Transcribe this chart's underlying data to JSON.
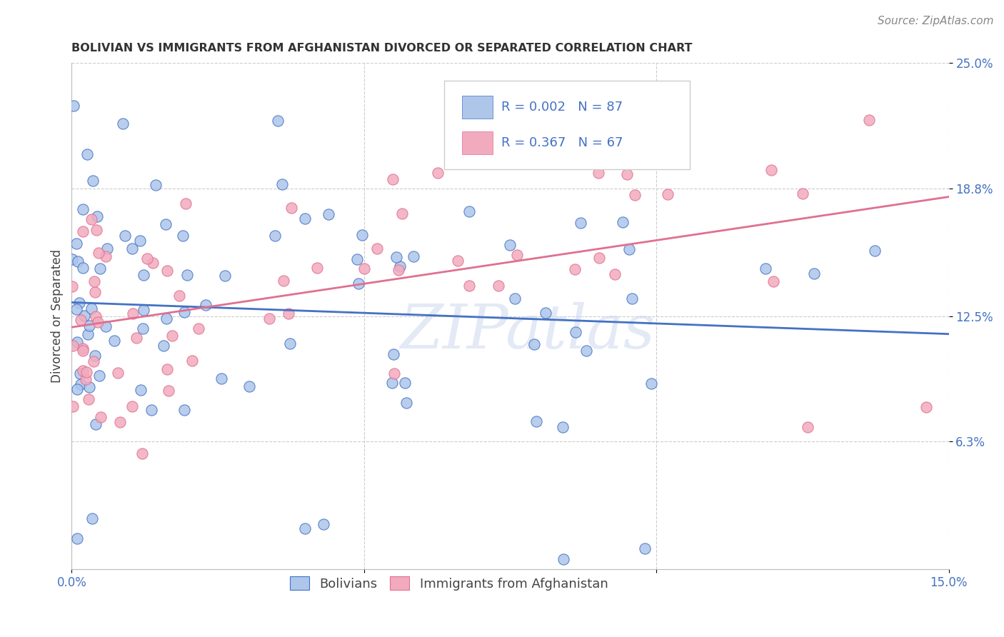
{
  "title": "BOLIVIAN VS IMMIGRANTS FROM AFGHANISTAN DIVORCED OR SEPARATED CORRELATION CHART",
  "source": "Source: ZipAtlas.com",
  "ylabel": "Divorced or Separated",
  "xmin": 0.0,
  "xmax": 0.15,
  "ymin": 0.0,
  "ymax": 0.25,
  "ytick_vals": [
    0.063,
    0.125,
    0.188,
    0.25
  ],
  "ytick_labels": [
    "6.3%",
    "12.5%",
    "18.8%",
    "25.0%"
  ],
  "xtick_vals": [
    0.0,
    0.15
  ],
  "xtick_labels": [
    "0.0%",
    "15.0%"
  ],
  "legend_label1": "Bolivians",
  "legend_label2": "Immigrants from Afghanistan",
  "R1": 0.002,
  "N1": 87,
  "R2": 0.367,
  "N2": 67,
  "color_blue": "#adc6ea",
  "color_pink": "#f2abbe",
  "line_blue": "#4472c4",
  "line_pink": "#e07090",
  "watermark": "ZIPatlas",
  "boliv_seed": 42,
  "afghan_seed": 99,
  "title_fontsize": 11.5,
  "tick_fontsize": 12,
  "source_fontsize": 11
}
